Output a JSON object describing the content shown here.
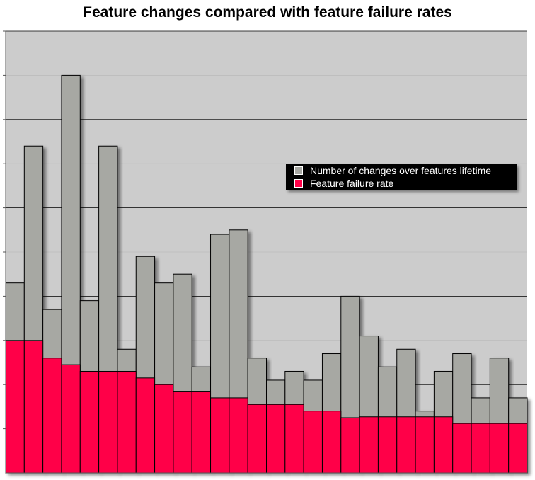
{
  "chart_data": {
    "type": "bar",
    "layout": "overlapping-stacked",
    "title": "Feature changes compared with feature failure rates",
    "xlabel": "",
    "ylabel": "",
    "ylim": [
      0,
      10
    ],
    "grid": true,
    "legend_position": "right-middle",
    "series": [
      {
        "name": "Number of changes over features lifetime",
        "color": "#a7a8a3",
        "values": [
          4.3,
          7.4,
          3.7,
          9.0,
          3.9,
          7.4,
          2.8,
          4.9,
          4.3,
          4.5,
          2.4,
          5.4,
          5.5,
          2.6,
          2.1,
          2.3,
          2.1,
          2.7,
          4.0,
          3.1,
          2.4,
          2.8,
          1.4,
          2.3,
          2.7,
          1.7,
          2.6,
          1.7
        ]
      },
      {
        "name": "Feature failure rate",
        "color": "#ff0048",
        "values": [
          3.0,
          3.0,
          2.6,
          2.45,
          2.3,
          2.3,
          2.3,
          2.15,
          2.0,
          1.85,
          1.85,
          1.7,
          1.7,
          1.55,
          1.55,
          1.55,
          1.4,
          1.4,
          1.25,
          1.27,
          1.27,
          1.27,
          1.27,
          1.27,
          1.12,
          1.12,
          1.12,
          1.12
        ]
      }
    ]
  },
  "colors": {
    "plot_background": "#cccccc",
    "gridline": "#000000",
    "legend_background": "#000000"
  }
}
